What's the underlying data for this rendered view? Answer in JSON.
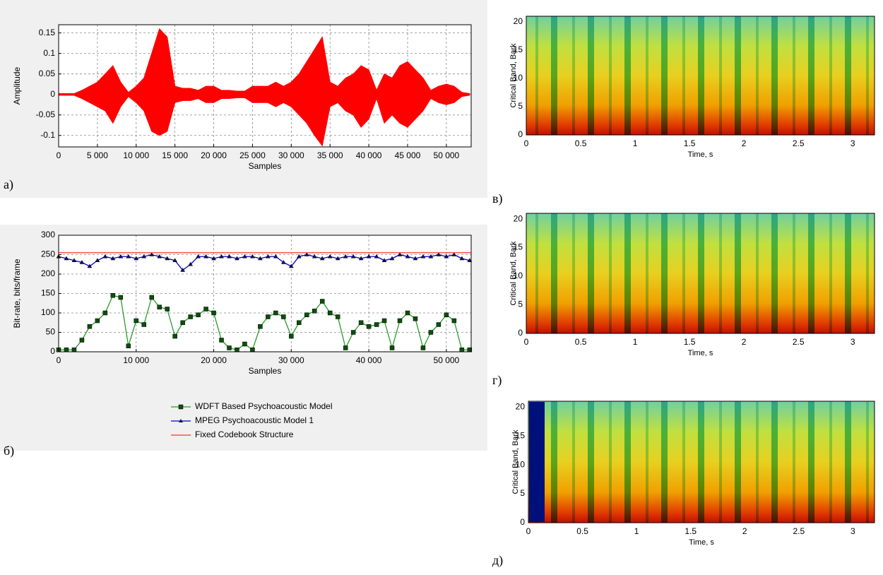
{
  "chart_data": [
    {
      "type": "area",
      "panel": "а)",
      "ylabel": "Amplitude",
      "xlabel": "Samples",
      "color": "#ff0000",
      "grid": true,
      "xlim": [
        0,
        53200
      ],
      "ylim": [
        -0.128,
        0.17
      ],
      "xticks": [
        0,
        {
          "value": 5000,
          "label": "5 000"
        },
        {
          "value": 10000,
          "label": "10 000"
        },
        {
          "value": 15000,
          "label": "15 000"
        },
        {
          "value": 20000,
          "label": "20 000"
        },
        {
          "value": 25000,
          "label": "25 000"
        },
        {
          "value": 30000,
          "label": "30 000"
        },
        {
          "value": 35000,
          "label": "35 000"
        },
        {
          "value": 40000,
          "label": "40 000"
        },
        {
          "value": 45000,
          "label": "45 000"
        },
        {
          "value": 50000,
          "label": "50 000"
        }
      ],
      "yticks": [
        -0.1,
        -0.05,
        0,
        0.05,
        0.1,
        0.15
      ],
      "x": [
        0,
        1000,
        2000,
        3000,
        4000,
        5000,
        6000,
        7000,
        8000,
        9000,
        10000,
        11000,
        12000,
        13000,
        14000,
        15000,
        16000,
        17000,
        18000,
        19000,
        20000,
        21000,
        22000,
        23000,
        24000,
        25000,
        26000,
        27000,
        28000,
        29000,
        30000,
        31000,
        32000,
        33000,
        34000,
        35000,
        36000,
        37000,
        38000,
        39000,
        40000,
        41000,
        42000,
        43000,
        44000,
        45000,
        46000,
        47000,
        48000,
        49000,
        50000,
        51000,
        52000,
        53000
      ],
      "max": [
        0.002,
        0.002,
        0.002,
        0.01,
        0.02,
        0.03,
        0.05,
        0.07,
        0.03,
        0.005,
        0.02,
        0.04,
        0.1,
        0.16,
        0.14,
        0.02,
        0.015,
        0.015,
        0.01,
        0.02,
        0.02,
        0.01,
        0.01,
        0.008,
        0.008,
        0.02,
        0.02,
        0.02,
        0.03,
        0.02,
        0.03,
        0.05,
        0.08,
        0.11,
        0.14,
        0.03,
        0.02,
        0.04,
        0.05,
        0.07,
        0.06,
        0.01,
        0.05,
        0.04,
        0.07,
        0.08,
        0.06,
        0.04,
        0.01,
        0.02,
        0.025,
        0.02,
        0.005,
        0.002
      ],
      "min": [
        -0.002,
        -0.002,
        -0.002,
        -0.01,
        -0.02,
        -0.03,
        -0.04,
        -0.07,
        -0.03,
        -0.005,
        -0.02,
        -0.04,
        -0.09,
        -0.1,
        -0.09,
        -0.02,
        -0.015,
        -0.015,
        -0.01,
        -0.02,
        -0.02,
        -0.01,
        -0.01,
        -0.008,
        -0.008,
        -0.02,
        -0.02,
        -0.02,
        -0.03,
        -0.02,
        -0.03,
        -0.05,
        -0.07,
        -0.1,
        -0.125,
        -0.03,
        -0.02,
        -0.04,
        -0.05,
        -0.08,
        -0.06,
        -0.01,
        -0.07,
        -0.05,
        -0.07,
        -0.08,
        -0.06,
        -0.04,
        -0.01,
        -0.02,
        -0.025,
        -0.02,
        -0.005,
        -0.002
      ]
    },
    {
      "type": "line",
      "panel": "б)",
      "ylabel": "Bit-rate, bits/frame",
      "xlabel": "Samples",
      "grid": true,
      "legend": "below",
      "xlim": [
        0,
        53200
      ],
      "ylim": [
        0,
        300
      ],
      "xticks": [
        0,
        {
          "value": 10000,
          "label": "10 000"
        },
        {
          "value": 20000,
          "label": "20 000"
        },
        {
          "value": 30000,
          "label": "30 000"
        },
        {
          "value": 40000,
          "label": "40 000"
        },
        {
          "value": 50000,
          "label": "50 000"
        }
      ],
      "yticks": [
        0,
        50,
        100,
        150,
        200,
        250,
        300
      ],
      "series": [
        {
          "name": "WDFT Based Psychoacoustic Model",
          "color": "#2a9a2a",
          "marker": "square",
          "marker_color": "#0b4f0b",
          "x": [
            0,
            1000,
            2000,
            3000,
            4000,
            5000,
            6000,
            7000,
            8000,
            9000,
            10000,
            11000,
            12000,
            13000,
            14000,
            15000,
            16000,
            17000,
            18000,
            19000,
            20000,
            21000,
            22000,
            23000,
            24000,
            25000,
            26000,
            27000,
            28000,
            29000,
            30000,
            31000,
            32000,
            33000,
            34000,
            35000,
            36000,
            37000,
            38000,
            39000,
            40000,
            41000,
            42000,
            43000,
            44000,
            45000,
            46000,
            47000,
            48000,
            49000,
            50000,
            51000,
            52000,
            53000
          ],
          "values": [
            5,
            5,
            5,
            30,
            65,
            80,
            100,
            145,
            140,
            15,
            80,
            70,
            140,
            115,
            110,
            40,
            75,
            90,
            95,
            110,
            100,
            30,
            10,
            5,
            20,
            5,
            65,
            90,
            100,
            90,
            40,
            75,
            95,
            105,
            130,
            100,
            90,
            10,
            50,
            75,
            65,
            70,
            80,
            10,
            80,
            100,
            85,
            10,
            50,
            70,
            95,
            80,
            5,
            5
          ]
        },
        {
          "name": "MPEG Psychoacoustic Model 1",
          "color": "#0000cc",
          "marker": "triangle",
          "marker_color": "#101060",
          "x": [
            0,
            1000,
            2000,
            3000,
            4000,
            5000,
            6000,
            7000,
            8000,
            9000,
            10000,
            11000,
            12000,
            13000,
            14000,
            15000,
            16000,
            17000,
            18000,
            19000,
            20000,
            21000,
            22000,
            23000,
            24000,
            25000,
            26000,
            27000,
            28000,
            29000,
            30000,
            31000,
            32000,
            33000,
            34000,
            35000,
            36000,
            37000,
            38000,
            39000,
            40000,
            41000,
            42000,
            43000,
            44000,
            45000,
            46000,
            47000,
            48000,
            49000,
            50000,
            51000,
            52000,
            53000
          ],
          "values": [
            245,
            240,
            235,
            230,
            220,
            235,
            245,
            240,
            245,
            245,
            240,
            245,
            250,
            245,
            240,
            235,
            210,
            225,
            245,
            245,
            240,
            245,
            245,
            240,
            245,
            245,
            240,
            245,
            245,
            230,
            220,
            245,
            250,
            245,
            240,
            245,
            240,
            245,
            245,
            240,
            245,
            245,
            235,
            240,
            250,
            245,
            240,
            245,
            245,
            250,
            245,
            250,
            240,
            235
          ]
        },
        {
          "name": "Fixed Codebook Structure",
          "color": "#ff3030",
          "marker": "none",
          "x": [
            0,
            53200
          ],
          "values": [
            255,
            255
          ]
        }
      ]
    },
    {
      "type": "heatmap",
      "panel": "в)",
      "ylabel": "Critical Band, Bark",
      "xlabel": "Time, s",
      "xlim": [
        0,
        3.2
      ],
      "ylim": [
        0,
        21
      ],
      "xticks": [
        0,
        0.5,
        1,
        1.5,
        2,
        2.5,
        3
      ],
      "yticks": [
        0,
        5,
        10,
        15,
        20
      ]
    },
    {
      "type": "heatmap",
      "panel": "г)",
      "ylabel": "Critical Band, Bark",
      "xlabel": "Time, s",
      "xlim": [
        0,
        3.2
      ],
      "ylim": [
        0,
        21
      ],
      "xticks": [
        0,
        0.5,
        1,
        1.5,
        2,
        2.5,
        3
      ],
      "yticks": [
        0,
        5,
        10,
        15,
        20
      ]
    },
    {
      "type": "heatmap",
      "panel": "д)",
      "ylabel": "Critical Band, Bark",
      "xlabel": "Time, s",
      "xlim": [
        0,
        3.2
      ],
      "ylim": [
        0,
        21
      ],
      "xticks": [
        0,
        0.5,
        1,
        1.5,
        2,
        2.5,
        3
      ],
      "yticks": [
        0,
        5,
        10,
        15,
        20
      ]
    }
  ]
}
